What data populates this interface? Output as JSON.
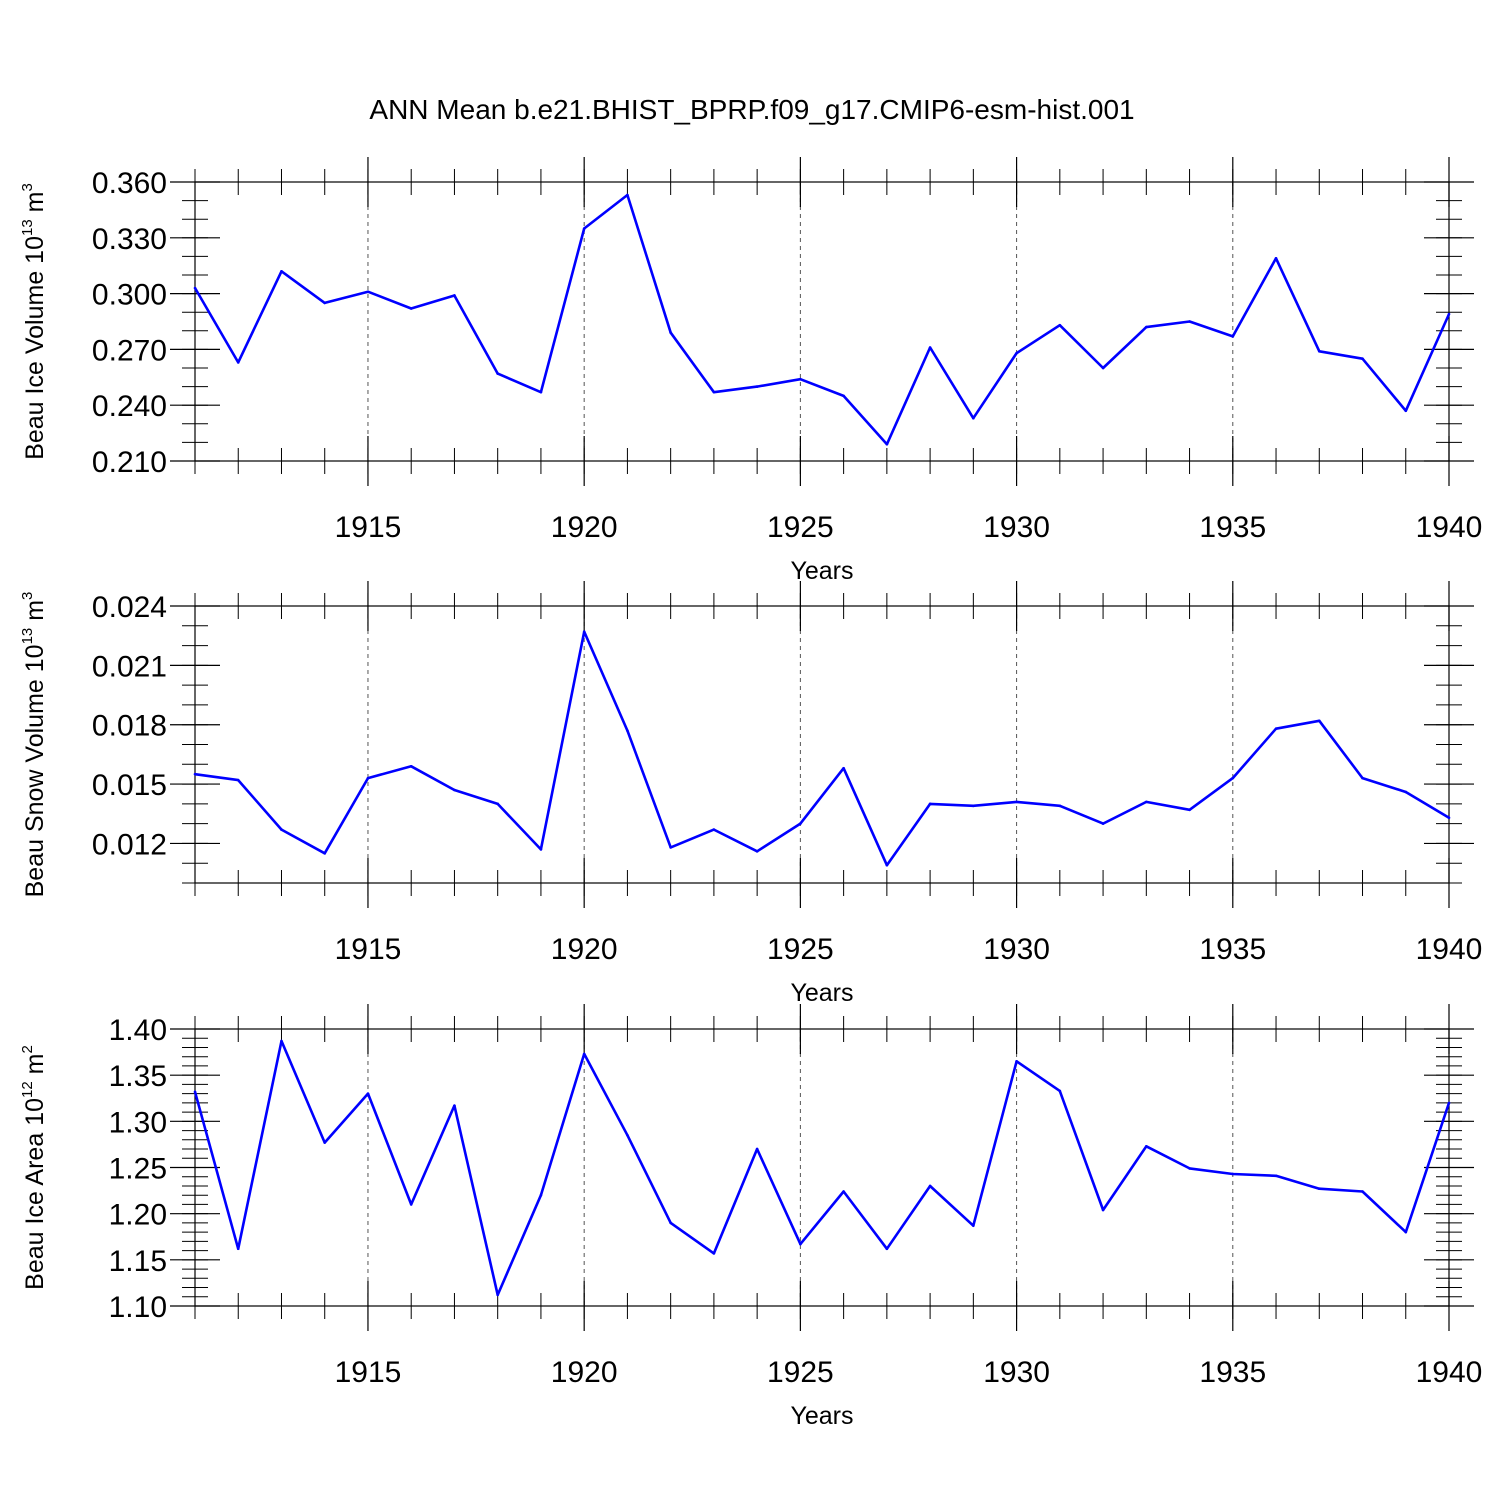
{
  "title": "ANN Mean b.e21.BHIST_BPRP.f09_g17.CMIP6-esm-hist.001",
  "colors": {
    "line": "#0000ff",
    "axis": "#000000",
    "grid": "#555555",
    "background": "#ffffff"
  },
  "chart_data": [
    {
      "type": "line",
      "ylabel": {
        "prefix": "Beau Ice Volume 10",
        "exp": "13",
        "unit": " m",
        "unit_exp": "3"
      },
      "xlabel": "Years",
      "xlim": [
        1911,
        1940
      ],
      "ylim": [
        0.21,
        0.36
      ],
      "yticks": [
        0.21,
        0.24,
        0.27,
        0.3,
        0.33,
        0.36
      ],
      "ytick_labels": [
        "0.210",
        "0.240",
        "0.270",
        "0.300",
        "0.330",
        "0.360"
      ],
      "yminor_step": 0.01,
      "xticks": [
        1915,
        1920,
        1925,
        1930,
        1935,
        1940
      ],
      "xtick_labels": [
        "1915",
        "1920",
        "1925",
        "1930",
        "1935",
        "1940"
      ],
      "grid": "x-dashed",
      "series": [
        {
          "name": "Beau Ice Volume",
          "x": [
            1911,
            1912,
            1913,
            1914,
            1915,
            1916,
            1917,
            1918,
            1919,
            1920,
            1921,
            1922,
            1923,
            1924,
            1925,
            1926,
            1927,
            1928,
            1929,
            1930,
            1931,
            1932,
            1933,
            1934,
            1935,
            1936,
            1937,
            1938,
            1939,
            1940
          ],
          "values": [
            0.303,
            0.263,
            0.312,
            0.295,
            0.301,
            0.292,
            0.299,
            0.257,
            0.247,
            0.335,
            0.353,
            0.279,
            0.247,
            0.25,
            0.254,
            0.245,
            0.219,
            0.271,
            0.233,
            0.268,
            0.283,
            0.26,
            0.282,
            0.285,
            0.277,
            0.319,
            0.269,
            0.265,
            0.237,
            0.289
          ]
        }
      ]
    },
    {
      "type": "line",
      "ylabel": {
        "prefix": "Beau Snow Volume 10",
        "exp": "13",
        "unit": " m",
        "unit_exp": "3"
      },
      "xlabel": "Years",
      "xlim": [
        1911,
        1940
      ],
      "ylim": [
        0.01,
        0.024
      ],
      "yticks": [
        0.012,
        0.015,
        0.018,
        0.021,
        0.024
      ],
      "ytick_labels": [
        "0.012",
        "0.015",
        "0.018",
        "0.021",
        "0.024"
      ],
      "yminor_step": 0.001,
      "xticks": [
        1915,
        1920,
        1925,
        1930,
        1935,
        1940
      ],
      "xtick_labels": [
        "1915",
        "1920",
        "1925",
        "1930",
        "1935",
        "1940"
      ],
      "grid": "x-dashed",
      "series": [
        {
          "name": "Beau Snow Volume",
          "x": [
            1911,
            1912,
            1913,
            1914,
            1915,
            1916,
            1917,
            1918,
            1919,
            1920,
            1921,
            1922,
            1923,
            1924,
            1925,
            1926,
            1927,
            1928,
            1929,
            1930,
            1931,
            1932,
            1933,
            1934,
            1935,
            1936,
            1937,
            1938,
            1939,
            1940
          ],
          "values": [
            0.0155,
            0.0152,
            0.0127,
            0.0115,
            0.0153,
            0.0159,
            0.0147,
            0.014,
            0.0117,
            0.0227,
            0.0177,
            0.0118,
            0.0127,
            0.0116,
            0.013,
            0.0158,
            0.0109,
            0.014,
            0.0139,
            0.0141,
            0.0139,
            0.013,
            0.0141,
            0.0137,
            0.0153,
            0.0178,
            0.0182,
            0.0153,
            0.0146,
            0.0133
          ]
        }
      ]
    },
    {
      "type": "line",
      "ylabel": {
        "prefix": "Beau Ice Area 10",
        "exp": "12",
        "unit": " m",
        "unit_exp": "2"
      },
      "xlabel": "Years",
      "xlim": [
        1911,
        1940
      ],
      "ylim": [
        1.1,
        1.4
      ],
      "yticks": [
        1.1,
        1.15,
        1.2,
        1.25,
        1.3,
        1.35,
        1.4
      ],
      "ytick_labels": [
        "1.10",
        "1.15",
        "1.20",
        "1.25",
        "1.30",
        "1.35",
        "1.40"
      ],
      "yminor_step": 0.01,
      "xticks": [
        1915,
        1920,
        1925,
        1930,
        1935,
        1940
      ],
      "xtick_labels": [
        "1915",
        "1920",
        "1925",
        "1930",
        "1935",
        "1940"
      ],
      "grid": "x-dashed",
      "series": [
        {
          "name": "Beau Ice Area",
          "x": [
            1911,
            1912,
            1913,
            1914,
            1915,
            1916,
            1917,
            1918,
            1919,
            1920,
            1921,
            1922,
            1923,
            1924,
            1925,
            1926,
            1927,
            1928,
            1929,
            1930,
            1931,
            1932,
            1933,
            1934,
            1935,
            1936,
            1937,
            1938,
            1939,
            1940
          ],
          "values": [
            1.332,
            1.162,
            1.387,
            1.277,
            1.33,
            1.21,
            1.317,
            1.112,
            1.22,
            1.373,
            1.285,
            1.19,
            1.157,
            1.27,
            1.167,
            1.224,
            1.162,
            1.23,
            1.187,
            1.365,
            1.333,
            1.204,
            1.273,
            1.249,
            1.243,
            1.241,
            1.227,
            1.224,
            1.18,
            1.32
          ]
        }
      ]
    }
  ]
}
